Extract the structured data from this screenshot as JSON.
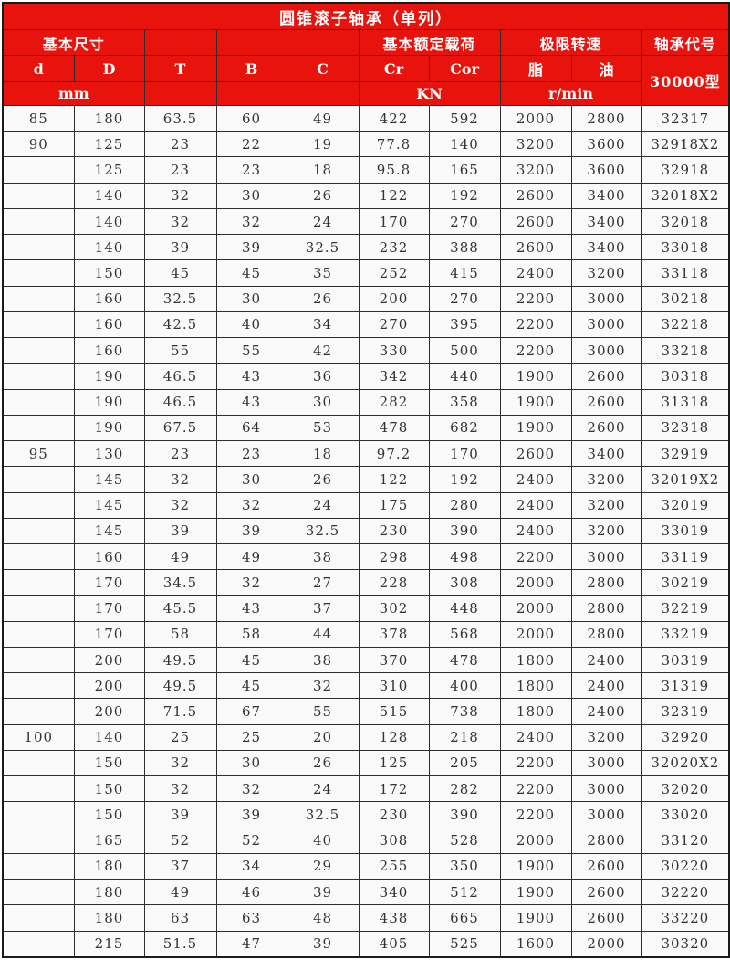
{
  "title": "圆锥滚子轴承（单列）",
  "header": {
    "basic_dimensions": "基本尺寸",
    "rated_load": "基本额定载荷",
    "limit_speed": "极限转速",
    "bearing_code": "轴承代号",
    "sub_columns": {
      "d": "d",
      "D": "D",
      "T": "T",
      "B": "B",
      "C": "C",
      "Cr": "Cr",
      "Cor": "Cor",
      "grease": "脂",
      "oil": "油"
    },
    "unit_mm": "mm",
    "unit_kn": "KN",
    "unit_rpm": "r/min",
    "code_series": "30000型"
  },
  "colors": {
    "header_red": "#e9130d",
    "header_text": "#ffffff",
    "body_text": "#333333",
    "border": "#2e2e2e",
    "cell_bg": "#fafafa"
  },
  "table": {
    "col_keys": [
      "d",
      "D",
      "T",
      "B",
      "C",
      "Cr",
      "Cor",
      "grease",
      "oil",
      "code"
    ],
    "rows": [
      [
        "85",
        "180",
        "63.5",
        "60",
        "49",
        "422",
        "592",
        "2000",
        "2800",
        "32317"
      ],
      [
        "90",
        "125",
        "23",
        "22",
        "19",
        "77.8",
        "140",
        "3200",
        "3600",
        "32918X2"
      ],
      [
        "",
        "125",
        "23",
        "23",
        "18",
        "95.8",
        "165",
        "3200",
        "3600",
        "32918"
      ],
      [
        "",
        "140",
        "32",
        "30",
        "26",
        "122",
        "192",
        "2600",
        "3400",
        "32018X2"
      ],
      [
        "",
        "140",
        "32",
        "32",
        "24",
        "170",
        "270",
        "2600",
        "3400",
        "32018"
      ],
      [
        "",
        "140",
        "39",
        "39",
        "32.5",
        "232",
        "388",
        "2600",
        "3400",
        "33018"
      ],
      [
        "",
        "150",
        "45",
        "45",
        "35",
        "252",
        "415",
        "2400",
        "3200",
        "33118"
      ],
      [
        "",
        "160",
        "32.5",
        "30",
        "26",
        "200",
        "270",
        "2200",
        "3000",
        "30218"
      ],
      [
        "",
        "160",
        "42.5",
        "40",
        "34",
        "270",
        "395",
        "2200",
        "3000",
        "32218"
      ],
      [
        "",
        "160",
        "55",
        "55",
        "42",
        "330",
        "500",
        "2200",
        "3000",
        "33218"
      ],
      [
        "",
        "190",
        "46.5",
        "43",
        "36",
        "342",
        "440",
        "1900",
        "2600",
        "30318"
      ],
      [
        "",
        "190",
        "46.5",
        "43",
        "30",
        "282",
        "358",
        "1900",
        "2600",
        "31318"
      ],
      [
        "",
        "190",
        "67.5",
        "64",
        "53",
        "478",
        "682",
        "1900",
        "2600",
        "32318"
      ],
      [
        "95",
        "130",
        "23",
        "23",
        "18",
        "97.2",
        "170",
        "2600",
        "3400",
        "32919"
      ],
      [
        "",
        "145",
        "32",
        "30",
        "26",
        "122",
        "192",
        "2400",
        "3200",
        "32019X2"
      ],
      [
        "",
        "145",
        "32",
        "32",
        "24",
        "175",
        "280",
        "2400",
        "3200",
        "32019"
      ],
      [
        "",
        "145",
        "39",
        "39",
        "32.5",
        "230",
        "390",
        "2400",
        "3200",
        "33019"
      ],
      [
        "",
        "160",
        "49",
        "49",
        "38",
        "298",
        "498",
        "2200",
        "3000",
        "33119"
      ],
      [
        "",
        "170",
        "34.5",
        "32",
        "27",
        "228",
        "308",
        "2000",
        "2800",
        "30219"
      ],
      [
        "",
        "170",
        "45.5",
        "43",
        "37",
        "302",
        "448",
        "2000",
        "2800",
        "32219"
      ],
      [
        "",
        "170",
        "58",
        "58",
        "44",
        "378",
        "568",
        "2000",
        "2800",
        "33219"
      ],
      [
        "",
        "200",
        "49.5",
        "45",
        "38",
        "370",
        "478",
        "1800",
        "2400",
        "30319"
      ],
      [
        "",
        "200",
        "49.5",
        "45",
        "32",
        "310",
        "400",
        "1800",
        "2400",
        "31319"
      ],
      [
        "",
        "200",
        "71.5",
        "67",
        "55",
        "515",
        "738",
        "1800",
        "2400",
        "32319"
      ],
      [
        "100",
        "140",
        "25",
        "25",
        "20",
        "128",
        "218",
        "2400",
        "3200",
        "32920"
      ],
      [
        "",
        "150",
        "32",
        "30",
        "26",
        "125",
        "205",
        "2200",
        "3000",
        "32020X2"
      ],
      [
        "",
        "150",
        "32",
        "32",
        "24",
        "172",
        "282",
        "2200",
        "3000",
        "32020"
      ],
      [
        "",
        "150",
        "39",
        "39",
        "32.5",
        "230",
        "390",
        "2200",
        "3000",
        "33020"
      ],
      [
        "",
        "165",
        "52",
        "52",
        "40",
        "308",
        "528",
        "2000",
        "2800",
        "33120"
      ],
      [
        "",
        "180",
        "37",
        "34",
        "29",
        "255",
        "350",
        "1900",
        "2600",
        "30220"
      ],
      [
        "",
        "180",
        "49",
        "46",
        "39",
        "340",
        "512",
        "1900",
        "2600",
        "32220"
      ],
      [
        "",
        "180",
        "63",
        "63",
        "48",
        "438",
        "665",
        "1900",
        "2600",
        "33220"
      ],
      [
        "",
        "215",
        "51.5",
        "47",
        "39",
        "405",
        "525",
        "1600",
        "2000",
        "30320"
      ]
    ]
  }
}
